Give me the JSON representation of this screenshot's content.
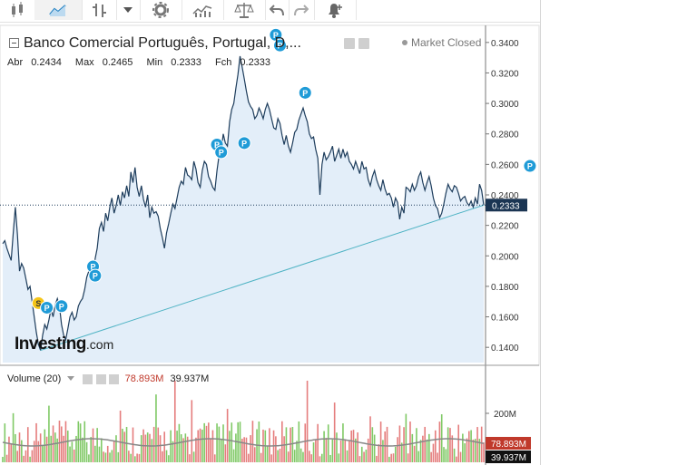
{
  "toolbar": {
    "items": [
      {
        "name": "candlestick-chart-icon"
      },
      {
        "name": "area-chart-icon"
      },
      {
        "name": "bar-chart-icon"
      },
      {
        "name": "chart-type-dropdown-icon"
      },
      {
        "name": "settings-icon"
      },
      {
        "name": "indicators-icon"
      },
      {
        "name": "compare-icon"
      },
      {
        "name": "undo-icon"
      },
      {
        "name": "redo-icon"
      },
      {
        "name": "alert-add-icon"
      }
    ]
  },
  "chart": {
    "title": "Banco Comercial Português, Portugal, D,...",
    "market_status": "Market Closed",
    "ohlc": {
      "open_label": "Abr",
      "open": "0.2434",
      "max_label": "Max",
      "max": "0.2465",
      "min_label": "Min",
      "min": "0.2333",
      "close_label": "Fch",
      "close": "0.2333"
    },
    "last_price_label": "0.2333",
    "logo_main": "Investing",
    "logo_suffix": ".com"
  },
  "volume": {
    "title": "Volume (20)",
    "value1": "78.893M",
    "value2": "39.937M",
    "axis_label": "200M",
    "colors": {
      "value1": "#c0392b",
      "value2": "#111111"
    }
  },
  "colors": {
    "accent": "#1f9bd7",
    "line": "#1e3d5c",
    "area": "#e0ecf8",
    "trend": "#4fb3c4",
    "marker_s": "#f5c518"
  },
  "chart_data": {
    "type": "area",
    "y_ticks": [
      "0.3400",
      "0.3200",
      "0.3000",
      "0.2800",
      "0.2600",
      "0.2400",
      "0.2200",
      "0.2000",
      "0.1800",
      "0.1600",
      "0.1400"
    ],
    "ylim": [
      0.13,
      0.35
    ],
    "last_value": 0.2333,
    "series": [
      {
        "values": [
          0.208,
          0.21,
          0.205,
          0.201,
          0.197,
          0.215,
          0.232,
          0.214,
          0.19,
          0.195,
          0.192,
          0.185,
          0.178,
          0.18,
          0.17,
          0.16,
          0.15,
          0.142,
          0.138,
          0.148,
          0.155,
          0.152,
          0.158,
          0.165,
          0.16,
          0.168,
          0.172,
          0.167,
          0.155,
          0.148,
          0.145,
          0.152,
          0.16,
          0.163,
          0.158,
          0.16,
          0.167,
          0.17,
          0.172,
          0.178,
          0.186,
          0.19,
          0.195,
          0.183,
          0.198,
          0.205,
          0.218,
          0.222,
          0.216,
          0.228,
          0.223,
          0.232,
          0.238,
          0.228,
          0.233,
          0.24,
          0.233,
          0.242,
          0.238,
          0.246,
          0.239,
          0.255,
          0.248,
          0.258,
          0.245,
          0.239,
          0.246,
          0.237,
          0.232,
          0.24,
          0.225,
          0.232,
          0.228,
          0.229,
          0.226,
          0.218,
          0.212,
          0.205,
          0.215,
          0.221,
          0.228,
          0.234,
          0.231,
          0.238,
          0.245,
          0.249,
          0.247,
          0.258,
          0.253,
          0.252,
          0.25,
          0.262,
          0.257,
          0.248,
          0.245,
          0.256,
          0.262,
          0.26,
          0.252,
          0.249,
          0.245,
          0.243,
          0.256,
          0.266,
          0.269,
          0.28,
          0.274,
          0.272,
          0.288,
          0.296,
          0.3,
          0.31,
          0.319,
          0.331,
          0.324,
          0.316,
          0.308,
          0.301,
          0.298,
          0.296,
          0.29,
          0.292,
          0.297,
          0.294,
          0.29,
          0.296,
          0.3,
          0.296,
          0.29,
          0.284,
          0.283,
          0.29,
          0.287,
          0.279,
          0.273,
          0.279,
          0.272,
          0.268,
          0.274,
          0.281,
          0.283,
          0.289,
          0.293,
          0.297,
          0.292,
          0.288,
          0.28,
          0.277,
          0.278,
          0.27,
          0.264,
          0.24,
          0.26,
          0.268,
          0.263,
          0.265,
          0.268,
          0.272,
          0.262,
          0.266,
          0.27,
          0.264,
          0.27,
          0.265,
          0.268,
          0.262,
          0.26,
          0.257,
          0.262,
          0.258,
          0.254,
          0.262,
          0.257,
          0.258,
          0.25,
          0.246,
          0.252,
          0.256,
          0.25,
          0.246,
          0.243,
          0.25,
          0.244,
          0.24,
          0.241,
          0.238,
          0.232,
          0.238,
          0.235,
          0.224,
          0.232,
          0.228,
          0.245,
          0.244,
          0.242,
          0.247,
          0.243,
          0.246,
          0.252,
          0.255,
          0.248,
          0.243,
          0.248,
          0.252,
          0.246,
          0.238,
          0.233,
          0.231,
          0.225,
          0.228,
          0.234,
          0.241,
          0.247,
          0.244,
          0.242,
          0.246,
          0.245,
          0.241,
          0.236,
          0.238,
          0.239,
          0.235,
          0.233,
          0.236,
          0.232,
          0.238,
          0.234,
          0.247,
          0.243,
          0.2333
        ]
      }
    ],
    "trendline": {
      "from": 0.138,
      "to": 0.2333
    },
    "markers": [
      {
        "label": "S",
        "index": 17,
        "value": 0.169
      },
      {
        "label": "P",
        "index": 21,
        "value": 0.166
      },
      {
        "label": "P",
        "index": 28,
        "value": 0.167
      },
      {
        "label": "P",
        "index": 43,
        "value": 0.193
      },
      {
        "label": "P",
        "index": 44,
        "value": 0.187
      },
      {
        "label": "P",
        "index": 102,
        "value": 0.273
      },
      {
        "label": "P",
        "index": 104,
        "value": 0.268
      },
      {
        "label": "P",
        "index": 115,
        "value": 0.274
      },
      {
        "label": "P",
        "index": 130,
        "value": 0.345
      },
      {
        "label": "P",
        "index": 132,
        "value": 0.338
      },
      {
        "label": "P",
        "index": 144,
        "value": 0.307
      },
      {
        "label": "P",
        "index": 251,
        "value": 0.259
      }
    ]
  }
}
